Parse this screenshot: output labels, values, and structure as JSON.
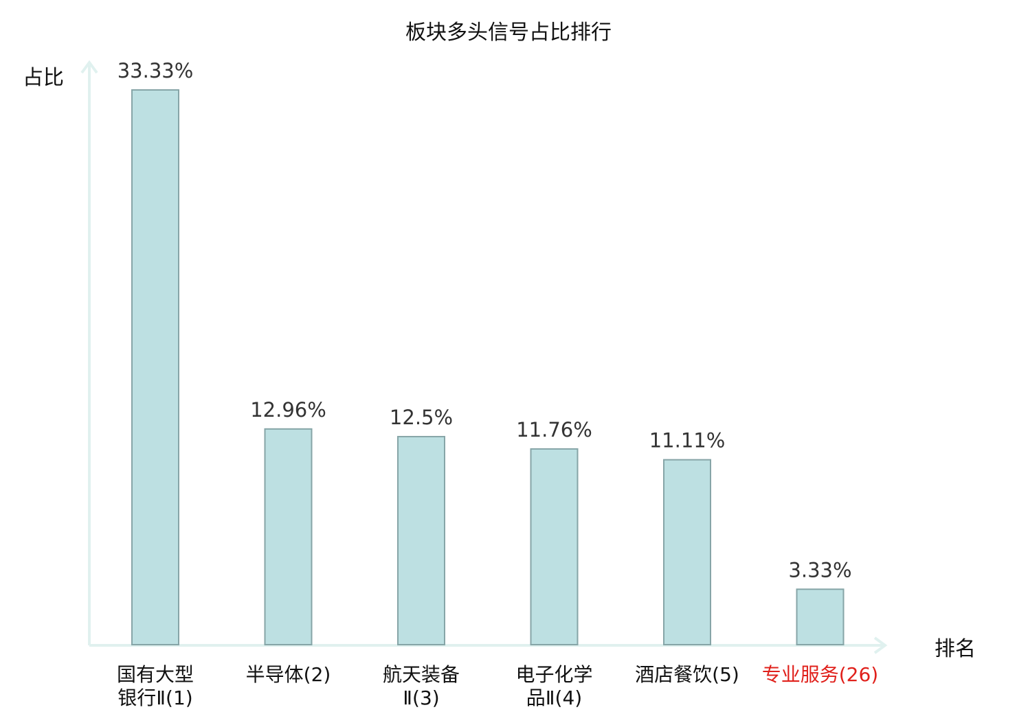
{
  "chart_data": {
    "type": "bar",
    "title": "板块多头信号占比排行",
    "ylabel": "占比",
    "xlabel": "排名",
    "categories": [
      [
        "国有大型",
        "银行Ⅱ(1)"
      ],
      [
        "半导体(2)"
      ],
      [
        "航天装备",
        "Ⅱ(3)"
      ],
      [
        "电子化学",
        "品Ⅱ(4)"
      ],
      [
        "酒店餐饮(5)"
      ],
      [
        "专业服务(26)"
      ]
    ],
    "values": [
      33.33,
      12.96,
      12.5,
      11.76,
      11.11,
      3.33
    ],
    "value_labels": [
      "33.33%",
      "12.96%",
      "12.5%",
      "11.76%",
      "11.11%",
      "3.33%"
    ],
    "highlight_index": 5,
    "ylim": [
      0,
      35
    ],
    "grid": false,
    "colors": {
      "bar_fill": "#bde0e2",
      "bar_stroke": "#86a5a7",
      "axis": "#e0f1ef",
      "highlight_text": "#e0201b",
      "label_text": "#333333"
    }
  }
}
